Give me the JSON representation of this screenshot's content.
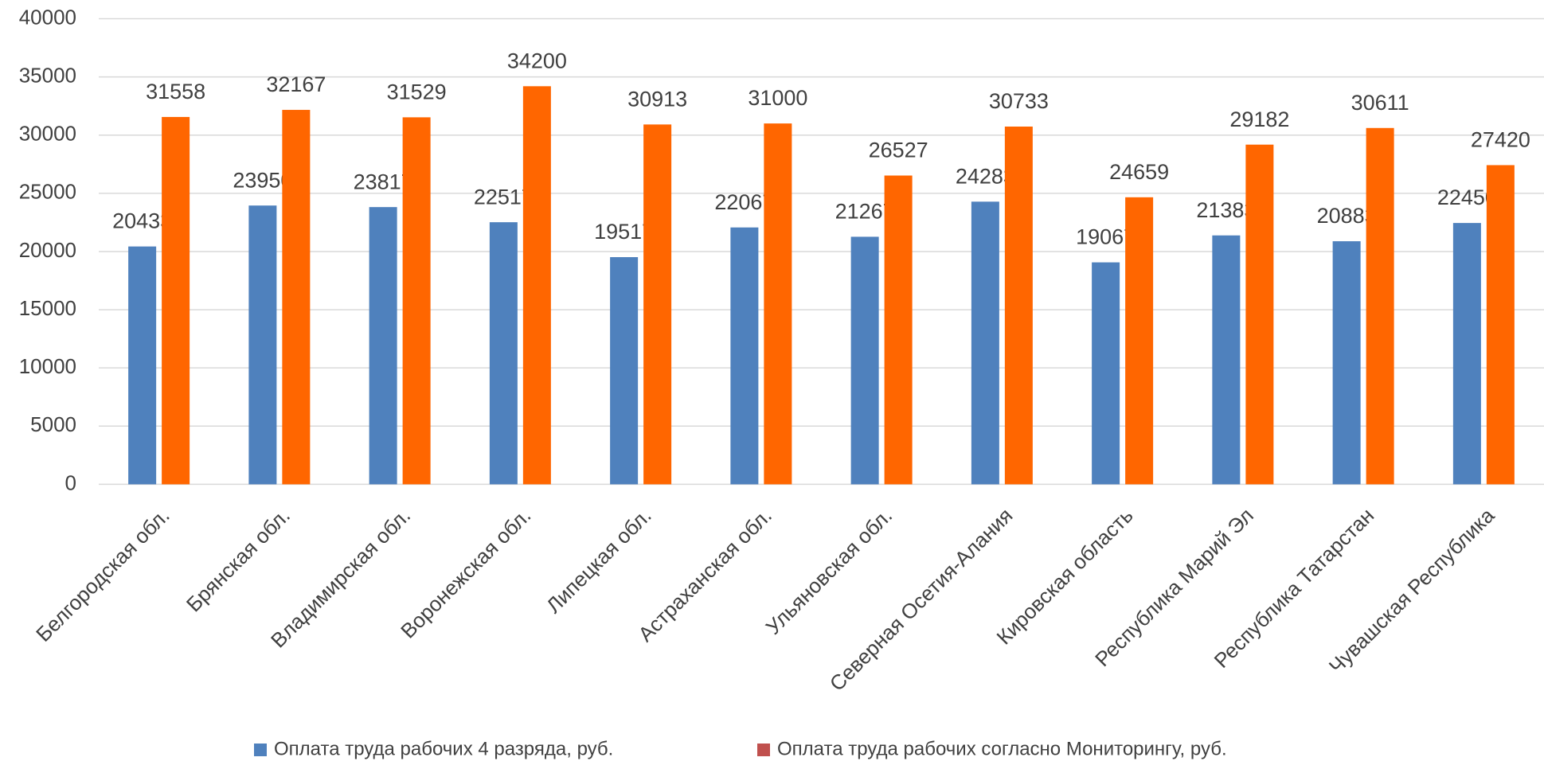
{
  "chart_data": {
    "type": "bar",
    "categories": [
      "Белгородская обл.",
      "Брянская обл.",
      "Владимирская обл.",
      "Воронежская обл.",
      "Липецкая обл.",
      "Астраханская обл.",
      "Ульяновская обл.",
      "Северная Осетия-Алания",
      "Кировская область",
      "Республика Марий Эл",
      "Республика Татарстан",
      "Чувашская Республика"
    ],
    "series": [
      {
        "name": "Оплата труда рабочих 4 разряда, руб.",
        "color": "#4f81bd",
        "legend_color": "#4f81bd",
        "values": [
          20433,
          23950,
          23817,
          22517,
          19517,
          22067,
          21267,
          24283,
          19067,
          21383,
          20883,
          22450
        ]
      },
      {
        "name": "Оплата труда рабочих согласно Мониторингу, руб.",
        "color": "#ff6600",
        "legend_color": "#c0504d",
        "values": [
          31558,
          32167,
          31529,
          34200,
          30913,
          31000,
          26527,
          30733,
          24659,
          29182,
          30611,
          27420
        ]
      }
    ],
    "ylim": [
      0,
      40000
    ],
    "yticks": [
      0,
      5000,
      10000,
      15000,
      20000,
      25000,
      30000,
      35000,
      40000
    ],
    "grid": true
  }
}
